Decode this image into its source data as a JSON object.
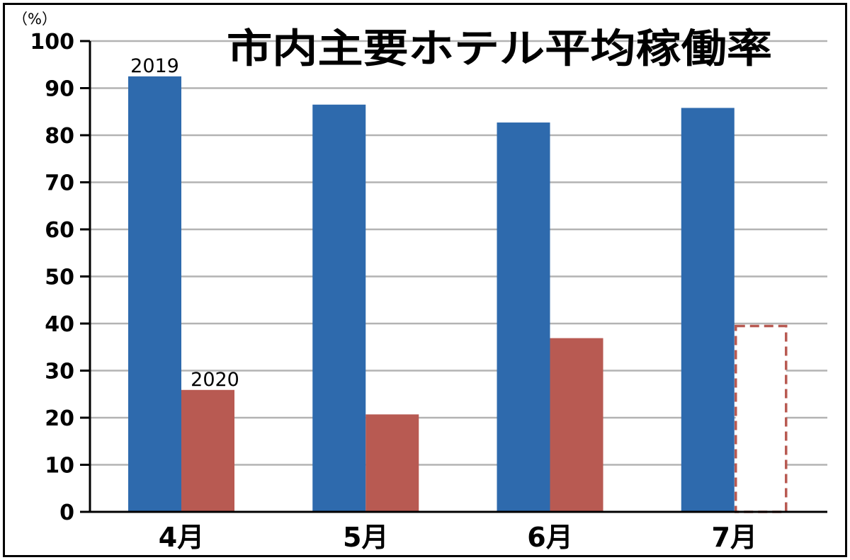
{
  "chart_data": {
    "type": "bar",
    "title": "市内主要ホテル平均稼働率",
    "ylabel": "（%）",
    "xlabel": "",
    "categories": [
      "4月",
      "5月",
      "6月",
      "7月"
    ],
    "yticks": [
      "0",
      "10",
      "20",
      "30",
      "40",
      "50",
      "60",
      "70",
      "80",
      "90",
      "100"
    ],
    "ylim": [
      0,
      100
    ],
    "grid": true,
    "series": [
      {
        "name": "2019",
        "color": "#2e6aad",
        "values": [
          92.5,
          86.5,
          82.7,
          85.8
        ],
        "estimated": [
          false,
          false,
          false,
          false
        ]
      },
      {
        "name": "2020",
        "color": "#b85a52",
        "values": [
          25.9,
          20.7,
          36.9,
          39.7
        ],
        "estimated": [
          false,
          false,
          false,
          true
        ]
      }
    ]
  }
}
